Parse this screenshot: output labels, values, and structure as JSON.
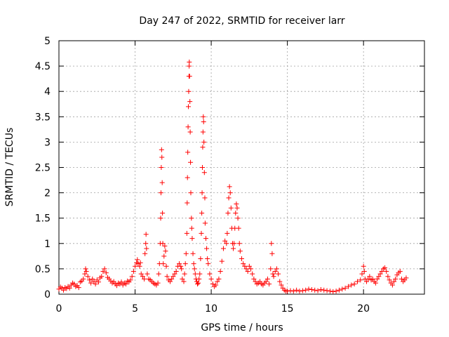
{
  "chart_data": {
    "type": "scatter",
    "title": "Day 247 of 2022, SRMTID for receiver larr",
    "xlabel": "GPS time / hours",
    "ylabel": "SRMTID / TECUs",
    "xlim": [
      0,
      24
    ],
    "ylim": [
      0,
      5
    ],
    "x_ticks": [
      0,
      5,
      10,
      15,
      20
    ],
    "x_tick_labels": [
      "0",
      "5",
      "10",
      "15",
      "20"
    ],
    "y_ticks": [
      0,
      0.5,
      1,
      1.5,
      2,
      2.5,
      3,
      3.5,
      4,
      4.5,
      5
    ],
    "y_tick_labels": [
      "0",
      "0.5",
      "1",
      "1.5",
      "2",
      "2.5",
      "3",
      "3.5",
      "4",
      "4.5",
      "5"
    ],
    "grid": true,
    "marker": "plus",
    "series": [
      {
        "name": "SRMTID",
        "color": "#ff0000",
        "points": [
          [
            0.0,
            0.1
          ],
          [
            0.1,
            0.14
          ],
          [
            0.2,
            0.12
          ],
          [
            0.3,
            0.08
          ],
          [
            0.4,
            0.13
          ],
          [
            0.5,
            0.11
          ],
          [
            0.6,
            0.15
          ],
          [
            0.7,
            0.12
          ],
          [
            0.8,
            0.18
          ],
          [
            0.9,
            0.22
          ],
          [
            1.0,
            0.2
          ],
          [
            1.1,
            0.15
          ],
          [
            1.2,
            0.17
          ],
          [
            1.3,
            0.13
          ],
          [
            1.4,
            0.24
          ],
          [
            1.5,
            0.26
          ],
          [
            1.6,
            0.3
          ],
          [
            1.7,
            0.4
          ],
          [
            1.75,
            0.5
          ],
          [
            1.8,
            0.45
          ],
          [
            1.9,
            0.35
          ],
          [
            2.0,
            0.28
          ],
          [
            2.1,
            0.22
          ],
          [
            2.2,
            0.3
          ],
          [
            2.3,
            0.25
          ],
          [
            2.4,
            0.2
          ],
          [
            2.5,
            0.28
          ],
          [
            2.6,
            0.24
          ],
          [
            2.7,
            0.32
          ],
          [
            2.8,
            0.35
          ],
          [
            2.9,
            0.45
          ],
          [
            3.0,
            0.5
          ],
          [
            3.1,
            0.42
          ],
          [
            3.2,
            0.33
          ],
          [
            3.3,
            0.3
          ],
          [
            3.4,
            0.26
          ],
          [
            3.5,
            0.22
          ],
          [
            3.6,
            0.25
          ],
          [
            3.7,
            0.2
          ],
          [
            3.8,
            0.17
          ],
          [
            3.9,
            0.22
          ],
          [
            4.0,
            0.2
          ],
          [
            4.1,
            0.24
          ],
          [
            4.2,
            0.18
          ],
          [
            4.3,
            0.22
          ],
          [
            4.4,
            0.2
          ],
          [
            4.5,
            0.26
          ],
          [
            4.6,
            0.24
          ],
          [
            4.7,
            0.28
          ],
          [
            4.8,
            0.35
          ],
          [
            4.9,
            0.45
          ],
          [
            5.0,
            0.55
          ],
          [
            5.1,
            0.62
          ],
          [
            5.15,
            0.68
          ],
          [
            5.2,
            0.6
          ],
          [
            5.3,
            0.55
          ],
          [
            5.35,
            0.62
          ],
          [
            5.4,
            0.4
          ],
          [
            5.5,
            0.35
          ],
          [
            5.6,
            0.3
          ],
          [
            5.65,
            0.8
          ],
          [
            5.7,
            1.0
          ],
          [
            5.72,
            1.18
          ],
          [
            5.75,
            0.9
          ],
          [
            5.8,
            0.4
          ],
          [
            5.9,
            0.3
          ],
          [
            6.0,
            0.28
          ],
          [
            6.1,
            0.25
          ],
          [
            6.2,
            0.22
          ],
          [
            6.3,
            0.2
          ],
          [
            6.4,
            0.18
          ],
          [
            6.5,
            0.22
          ],
          [
            6.55,
            0.4
          ],
          [
            6.6,
            0.6
          ],
          [
            6.65,
            1.0
          ],
          [
            6.68,
            1.5
          ],
          [
            6.7,
            2.0
          ],
          [
            6.72,
            2.5
          ],
          [
            6.74,
            2.85
          ],
          [
            6.76,
            2.7
          ],
          [
            6.78,
            2.2
          ],
          [
            6.8,
            1.6
          ],
          [
            6.82,
            1.0
          ],
          [
            6.85,
            0.6
          ],
          [
            6.9,
            0.75
          ],
          [
            6.95,
            0.95
          ],
          [
            7.0,
            0.85
          ],
          [
            7.05,
            0.55
          ],
          [
            7.1,
            0.35
          ],
          [
            7.2,
            0.28
          ],
          [
            7.3,
            0.25
          ],
          [
            7.4,
            0.3
          ],
          [
            7.5,
            0.35
          ],
          [
            7.6,
            0.4
          ],
          [
            7.7,
            0.45
          ],
          [
            7.8,
            0.55
          ],
          [
            7.9,
            0.6
          ],
          [
            8.0,
            0.55
          ],
          [
            8.05,
            0.5
          ],
          [
            8.1,
            0.3
          ],
          [
            8.2,
            0.25
          ],
          [
            8.25,
            0.4
          ],
          [
            8.3,
            0.6
          ],
          [
            8.35,
            0.8
          ],
          [
            8.4,
            1.2
          ],
          [
            8.42,
            1.8
          ],
          [
            8.44,
            2.3
          ],
          [
            8.46,
            2.8
          ],
          [
            8.48,
            3.3
          ],
          [
            8.5,
            3.7
          ],
          [
            8.52,
            4.0
          ],
          [
            8.54,
            4.3
          ],
          [
            8.55,
            4.5
          ],
          [
            8.56,
            4.58
          ],
          [
            8.58,
            4.3
          ],
          [
            8.6,
            3.8
          ],
          [
            8.62,
            3.2
          ],
          [
            8.64,
            2.6
          ],
          [
            8.66,
            2.0
          ],
          [
            8.7,
            1.5
          ],
          [
            8.72,
            1.3
          ],
          [
            8.75,
            1.1
          ],
          [
            8.8,
            0.8
          ],
          [
            8.85,
            0.6
          ],
          [
            8.9,
            0.5
          ],
          [
            8.95,
            0.4
          ],
          [
            9.0,
            0.3
          ],
          [
            9.05,
            0.25
          ],
          [
            9.1,
            0.2
          ],
          [
            9.15,
            0.22
          ],
          [
            9.2,
            0.3
          ],
          [
            9.25,
            0.4
          ],
          [
            9.3,
            0.7
          ],
          [
            9.35,
            1.2
          ],
          [
            9.38,
            1.6
          ],
          [
            9.4,
            2.0
          ],
          [
            9.42,
            2.5
          ],
          [
            9.44,
            2.9
          ],
          [
            9.46,
            3.2
          ],
          [
            9.48,
            3.5
          ],
          [
            9.5,
            3.4
          ],
          [
            9.52,
            3.0
          ],
          [
            9.55,
            2.4
          ],
          [
            9.58,
            1.9
          ],
          [
            9.6,
            1.4
          ],
          [
            9.65,
            1.1
          ],
          [
            9.7,
            0.9
          ],
          [
            9.75,
            0.7
          ],
          [
            9.8,
            0.6
          ],
          [
            9.9,
            0.4
          ],
          [
            10.0,
            0.3
          ],
          [
            10.1,
            0.2
          ],
          [
            10.2,
            0.15
          ],
          [
            10.3,
            0.18
          ],
          [
            10.4,
            0.25
          ],
          [
            10.5,
            0.3
          ],
          [
            10.6,
            0.45
          ],
          [
            10.7,
            0.65
          ],
          [
            10.8,
            0.9
          ],
          [
            10.9,
            1.05
          ],
          [
            11.0,
            1.0
          ],
          [
            11.05,
            1.2
          ],
          [
            11.1,
            1.6
          ],
          [
            11.15,
            1.9
          ],
          [
            11.2,
            2.12
          ],
          [
            11.25,
            2.0
          ],
          [
            11.3,
            1.7
          ],
          [
            11.35,
            1.3
          ],
          [
            11.4,
            1.0
          ],
          [
            11.45,
            0.9
          ],
          [
            11.5,
            1.0
          ],
          [
            11.55,
            1.3
          ],
          [
            11.6,
            1.6
          ],
          [
            11.65,
            1.78
          ],
          [
            11.7,
            1.7
          ],
          [
            11.75,
            1.5
          ],
          [
            11.8,
            1.3
          ],
          [
            11.85,
            1.0
          ],
          [
            11.9,
            0.85
          ],
          [
            12.0,
            0.7
          ],
          [
            12.1,
            0.6
          ],
          [
            12.2,
            0.55
          ],
          [
            12.3,
            0.5
          ],
          [
            12.4,
            0.45
          ],
          [
            12.5,
            0.55
          ],
          [
            12.6,
            0.5
          ],
          [
            12.7,
            0.4
          ],
          [
            12.8,
            0.3
          ],
          [
            12.9,
            0.25
          ],
          [
            13.0,
            0.2
          ],
          [
            13.1,
            0.22
          ],
          [
            13.2,
            0.25
          ],
          [
            13.3,
            0.2
          ],
          [
            13.4,
            0.18
          ],
          [
            13.5,
            0.22
          ],
          [
            13.6,
            0.25
          ],
          [
            13.7,
            0.3
          ],
          [
            13.8,
            0.2
          ],
          [
            13.9,
            0.5
          ],
          [
            13.95,
            1.0
          ],
          [
            14.0,
            0.8
          ],
          [
            14.05,
            0.4
          ],
          [
            14.1,
            0.35
          ],
          [
            14.2,
            0.45
          ],
          [
            14.3,
            0.5
          ],
          [
            14.4,
            0.4
          ],
          [
            14.5,
            0.25
          ],
          [
            14.6,
            0.18
          ],
          [
            14.7,
            0.12
          ],
          [
            14.8,
            0.08
          ],
          [
            14.9,
            0.06
          ],
          [
            15.0,
            0.06
          ],
          [
            15.2,
            0.07
          ],
          [
            15.4,
            0.06
          ],
          [
            15.6,
            0.08
          ],
          [
            15.8,
            0.06
          ],
          [
            16.0,
            0.07
          ],
          [
            16.2,
            0.08
          ],
          [
            16.4,
            0.1
          ],
          [
            16.6,
            0.09
          ],
          [
            16.8,
            0.08
          ],
          [
            17.0,
            0.07
          ],
          [
            17.2,
            0.09
          ],
          [
            17.4,
            0.08
          ],
          [
            17.6,
            0.07
          ],
          [
            17.8,
            0.06
          ],
          [
            18.0,
            0.05
          ],
          [
            18.2,
            0.06
          ],
          [
            18.4,
            0.08
          ],
          [
            18.6,
            0.1
          ],
          [
            18.8,
            0.12
          ],
          [
            19.0,
            0.15
          ],
          [
            19.2,
            0.18
          ],
          [
            19.4,
            0.2
          ],
          [
            19.6,
            0.25
          ],
          [
            19.8,
            0.28
          ],
          [
            19.9,
            0.4
          ],
          [
            20.0,
            0.55
          ],
          [
            20.05,
            0.45
          ],
          [
            20.1,
            0.3
          ],
          [
            20.2,
            0.25
          ],
          [
            20.3,
            0.3
          ],
          [
            20.4,
            0.35
          ],
          [
            20.5,
            0.28
          ],
          [
            20.6,
            0.3
          ],
          [
            20.7,
            0.25
          ],
          [
            20.8,
            0.22
          ],
          [
            20.9,
            0.3
          ],
          [
            21.0,
            0.35
          ],
          [
            21.1,
            0.4
          ],
          [
            21.2,
            0.45
          ],
          [
            21.3,
            0.5
          ],
          [
            21.4,
            0.52
          ],
          [
            21.5,
            0.45
          ],
          [
            21.6,
            0.35
          ],
          [
            21.7,
            0.28
          ],
          [
            21.8,
            0.22
          ],
          [
            21.9,
            0.18
          ],
          [
            22.0,
            0.25
          ],
          [
            22.1,
            0.3
          ],
          [
            22.2,
            0.38
          ],
          [
            22.3,
            0.42
          ],
          [
            22.4,
            0.45
          ],
          [
            22.5,
            0.3
          ],
          [
            22.6,
            0.25
          ],
          [
            22.7,
            0.28
          ],
          [
            22.8,
            0.32
          ]
        ]
      }
    ]
  }
}
